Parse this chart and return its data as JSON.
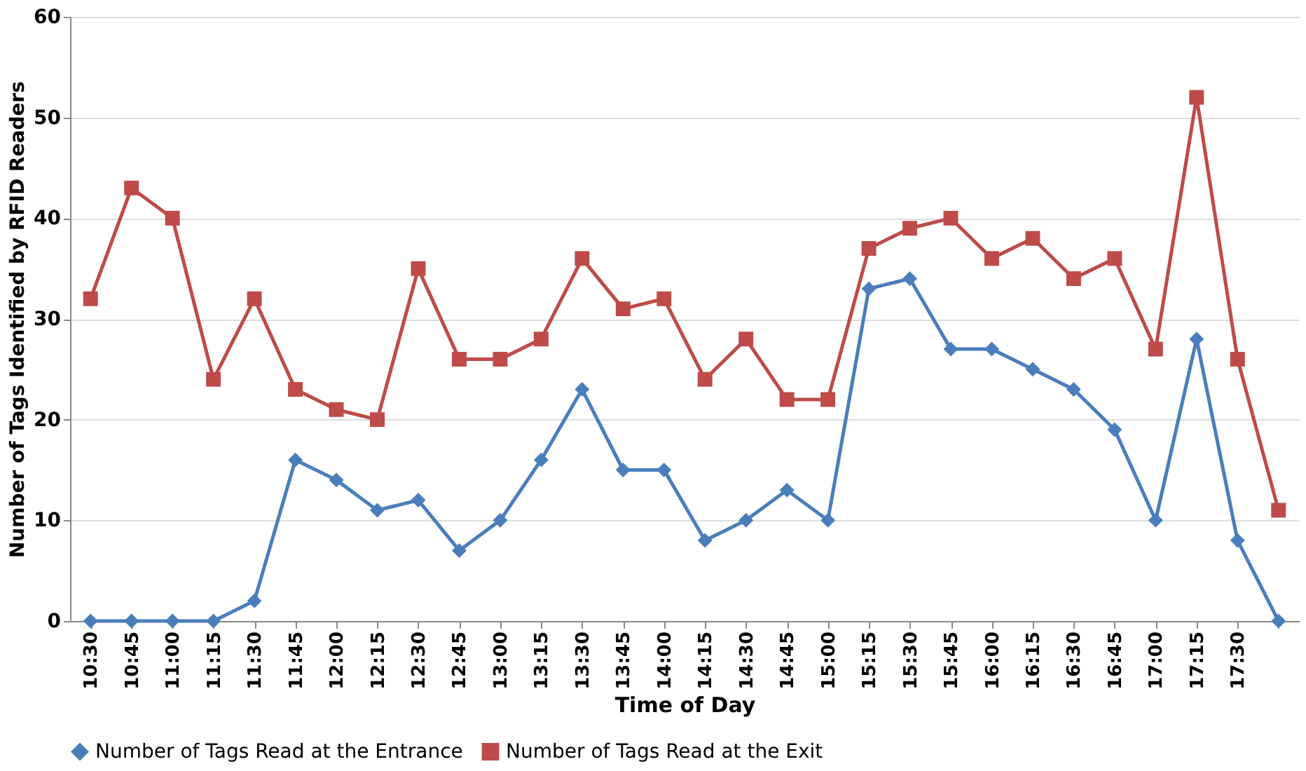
{
  "chart_data": {
    "type": "line",
    "xlabel": "Time of Day",
    "ylabel": "Number of Tags Identified by RFID Readers",
    "categories": [
      "10:30",
      "10:45",
      "11:00",
      "11:15",
      "11:30",
      "11:45",
      "12:00",
      "12:15",
      "12:30",
      "12:45",
      "13:00",
      "13:15",
      "13:30",
      "13:45",
      "14:00",
      "14:15",
      "14:30",
      "14:45",
      "15:00",
      "15:15",
      "15:30",
      "15:45",
      "16:00",
      "16:15",
      "16:30",
      "16:45",
      "17:00",
      "17:15",
      "17:30",
      null
    ],
    "series": [
      {
        "name": "Number of Tags Read at the Entrance",
        "color": "#4a7ebb",
        "marker": "diamond",
        "values": [
          0,
          0,
          0,
          0,
          2,
          16,
          14,
          11,
          12,
          7,
          10,
          16,
          23,
          15,
          15,
          8,
          10,
          13,
          10,
          33,
          34,
          27,
          27,
          25,
          23,
          19,
          10,
          28,
          8,
          0
        ]
      },
      {
        "name": "Number of Tags Read at the Exit",
        "color": "#be4b48",
        "marker": "square",
        "values": [
          32,
          43,
          40,
          24,
          32,
          23,
          21,
          20,
          35,
          26,
          26,
          28,
          36,
          31,
          32,
          24,
          28,
          22,
          22,
          37,
          39,
          40,
          36,
          38,
          34,
          36,
          27,
          52,
          26,
          11
        ]
      }
    ],
    "ylim": [
      0,
      60
    ],
    "yticks": [
      0,
      10,
      20,
      30,
      40,
      50,
      60
    ],
    "grid": "y",
    "legend": "bottom",
    "line_style": "solid"
  }
}
